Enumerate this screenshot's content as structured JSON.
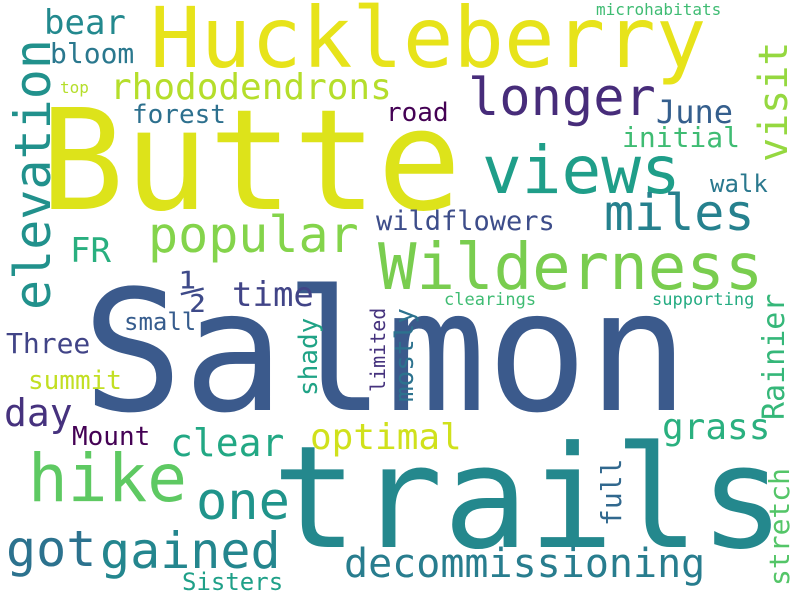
{
  "words": {
    "salmon": {
      "text": "Salmon",
      "color": "#3b5a8c"
    },
    "trails": {
      "text": "trails",
      "color": "#24888d"
    },
    "butte": {
      "text": "Butte",
      "color": "#dde31a"
    },
    "huckleberry": {
      "text": "Huckleberry",
      "color": "#e7e31a"
    },
    "wilderness": {
      "text": "Wilderness",
      "color": "#79cd4f"
    },
    "views": {
      "text": "views",
      "color": "#1f9e89"
    },
    "longer": {
      "text": "longer",
      "color": "#472c7a"
    },
    "hike": {
      "text": "hike",
      "color": "#5ec962"
    },
    "elevation": {
      "text": "elevation",
      "color": "#21918c"
    },
    "miles": {
      "text": "miles",
      "color": "#26818e"
    },
    "popular": {
      "text": "popular",
      "color": "#84d44b"
    },
    "one": {
      "text": "one",
      "color": "#20948b"
    },
    "got": {
      "text": "got",
      "color": "#2c728e"
    },
    "gained": {
      "text": "gained",
      "color": "#24868e"
    },
    "decommissioning": {
      "text": "decommissioning",
      "color": "#287d8e"
    },
    "rhododendrons": {
      "text": "rhododendrons",
      "color": "#b5de2b"
    },
    "optimal": {
      "text": "optimal",
      "color": "#d0e11c"
    },
    "clear": {
      "text": "clear",
      "color": "#22a884"
    },
    "time": {
      "text": "time",
      "color": "#414487"
    },
    "half": {
      "text": "½",
      "color": "#3e4a89"
    },
    "bear": {
      "text": "bear",
      "color": "#23898e"
    },
    "bloom": {
      "text": "bloom",
      "color": "#2a788e"
    },
    "june": {
      "text": "June",
      "color": "#355f8d"
    },
    "visit": {
      "text": "visit",
      "color": "#95d840"
    },
    "grass": {
      "text": "grass",
      "color": "#2ab07f"
    },
    "day": {
      "text": "day",
      "color": "#46327e"
    },
    "fr": {
      "text": "FR",
      "color": "#29af7f"
    },
    "wildflowers": {
      "text": "wildflowers",
      "color": "#3d4d8a"
    },
    "forest": {
      "text": "forest",
      "color": "#2d708e"
    },
    "road": {
      "text": "road",
      "color": "#440154"
    },
    "initial": {
      "text": "initial",
      "color": "#3fbc73"
    },
    "walk": {
      "text": "walk",
      "color": "#2a788e"
    },
    "summit": {
      "text": "summit",
      "color": "#c2df23"
    },
    "three": {
      "text": "Three",
      "color": "#414487"
    },
    "mount": {
      "text": "Mount",
      "color": "#440154"
    },
    "small": {
      "text": "small",
      "color": "#365c8d"
    },
    "shady": {
      "text": "shady",
      "color": "#20a386"
    },
    "mostly": {
      "text": "mostly",
      "color": "#2c728e"
    },
    "limited": {
      "text": "limited",
      "color": "#46337e"
    },
    "rainier": {
      "text": "Rainier",
      "color": "#35b779"
    },
    "full": {
      "text": "full",
      "color": "#31688e"
    },
    "stretch": {
      "text": "stretch",
      "color": "#54c568"
    },
    "sisters": {
      "text": "Sisters",
      "color": "#1fa088"
    },
    "clearings": {
      "text": "clearings",
      "color": "#3fbc73"
    },
    "supporting": {
      "text": "supporting",
      "color": "#25ac82"
    },
    "microhabitats": {
      "text": "microhabitats",
      "color": "#3fbc73"
    },
    "top": {
      "text": "top",
      "color": "#b5de2b"
    }
  }
}
